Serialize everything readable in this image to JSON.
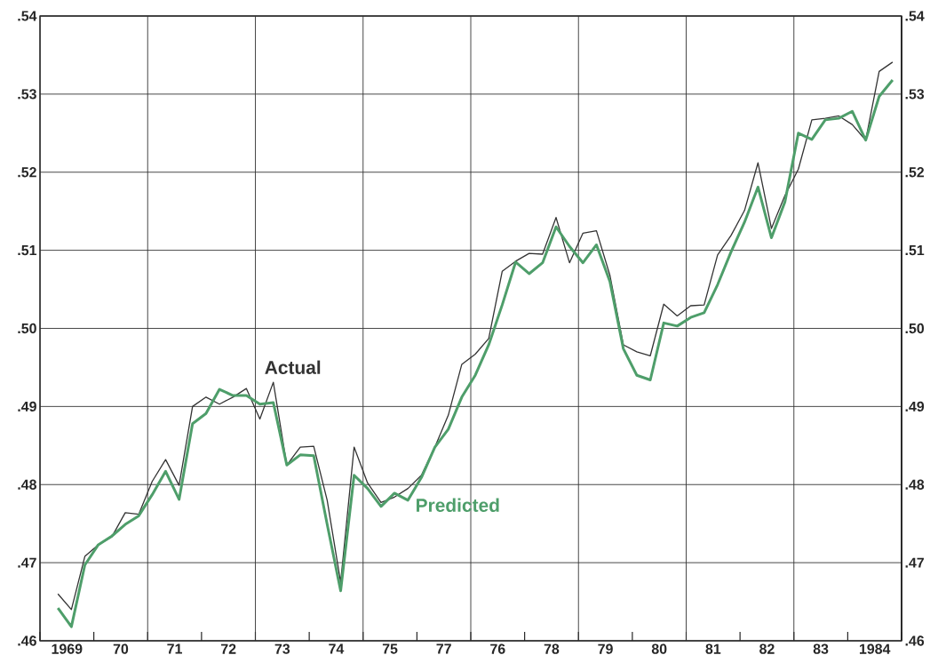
{
  "chart_data": {
    "type": "line",
    "x": [
      "1969-05",
      "1969-08",
      "1969-11",
      "1970-02",
      "1970-05",
      "1970-08",
      "1970-11",
      "1971-02",
      "1971-05",
      "1971-08",
      "1971-11",
      "1972-02",
      "1972-05",
      "1972-08",
      "1972-11",
      "1973-02",
      "1973-05",
      "1973-08",
      "1973-11",
      "1974-02",
      "1974-05",
      "1974-08",
      "1974-11",
      "1975-02",
      "1975-05",
      "1975-08",
      "1975-11",
      "1976-02",
      "1976-05",
      "1976-08",
      "1976-11",
      "1977-02",
      "1977-05",
      "1977-08",
      "1977-11",
      "1978-02",
      "1978-05",
      "1978-08",
      "1978-11",
      "1979-02",
      "1979-05",
      "1979-08",
      "1979-11",
      "1980-02",
      "1980-05",
      "1980-08",
      "1980-11",
      "1981-02",
      "1981-05",
      "1981-08",
      "1981-11",
      "1982-02",
      "1982-05",
      "1982-08",
      "1982-11",
      "1983-02",
      "1983-05",
      "1983-08",
      "1983-11",
      "1984-02",
      "1984-05",
      "1984-08",
      "1984-11"
    ],
    "series": [
      {
        "name": "Actual",
        "color": "#333333",
        "values": [
          0.466,
          0.464,
          0.4708,
          0.4723,
          0.4733,
          0.4764,
          0.4762,
          0.4804,
          0.4832,
          0.4799,
          0.49,
          0.4912,
          0.4903,
          0.4912,
          0.4923,
          0.4884,
          0.4931,
          0.4825,
          0.4848,
          0.4849,
          0.478,
          0.4675,
          0.4848,
          0.4802,
          0.4777,
          0.4784,
          0.4795,
          0.4812,
          0.4848,
          0.4889,
          0.4954,
          0.4967,
          0.4987,
          0.5073,
          0.5086,
          0.5096,
          0.5095,
          0.5142,
          0.5084,
          0.5122,
          0.5125,
          0.5068,
          0.4979,
          0.497,
          0.4965,
          0.5031,
          0.5016,
          0.5029,
          0.503,
          0.5094,
          0.5119,
          0.5151,
          0.5212,
          0.5128,
          0.517,
          0.5204,
          0.5267,
          0.5269,
          0.5272,
          0.5261,
          0.5241,
          0.5329,
          0.5341
        ]
      },
      {
        "name": "Predicted",
        "color": "#4e9e6a",
        "values": [
          0.4642,
          0.4618,
          0.4697,
          0.4723,
          0.4734,
          0.4749,
          0.476,
          0.4787,
          0.4817,
          0.4781,
          0.4878,
          0.4891,
          0.4922,
          0.4914,
          0.4914,
          0.4903,
          0.4905,
          0.4825,
          0.4838,
          0.4837,
          0.4749,
          0.4664,
          0.4812,
          0.4795,
          0.4772,
          0.4789,
          0.478,
          0.4809,
          0.4848,
          0.4871,
          0.4912,
          0.494,
          0.4979,
          0.503,
          0.5085,
          0.507,
          0.5084,
          0.513,
          0.5105,
          0.5084,
          0.5107,
          0.506,
          0.4974,
          0.494,
          0.4934,
          0.5007,
          0.5003,
          0.5014,
          0.502,
          0.5056,
          0.5098,
          0.5136,
          0.5181,
          0.5116,
          0.5162,
          0.525,
          0.5242,
          0.5267,
          0.5269,
          0.5278,
          0.5241,
          0.5297,
          0.5318
        ]
      }
    ],
    "xlim": [
      "1969-01",
      "1985-01"
    ],
    "xticks": [
      {
        "value": "1969-07",
        "label": "1969"
      },
      {
        "value": "1970-07",
        "label": "70"
      },
      {
        "value": "1971-07",
        "label": "71"
      },
      {
        "value": "1972-07",
        "label": "72"
      },
      {
        "value": "1973-07",
        "label": "73"
      },
      {
        "value": "1974-07",
        "label": "74"
      },
      {
        "value": "1975-07",
        "label": "75"
      },
      {
        "value": "1976-07",
        "label": "77"
      },
      {
        "value": "1977-07",
        "label": "76"
      },
      {
        "value": "1978-07",
        "label": "78"
      },
      {
        "value": "1979-07",
        "label": "79"
      },
      {
        "value": "1980-07",
        "label": "80"
      },
      {
        "value": "1981-07",
        "label": "81"
      },
      {
        "value": "1982-07",
        "label": "82"
      },
      {
        "value": "1983-07",
        "label": "83"
      },
      {
        "value": "1984-07",
        "label": "1984"
      },
      {
        "value": "1969-01",
        "label": null
      },
      {
        "value": "1970-01",
        "label": null
      },
      {
        "value": "1971-01",
        "label": null
      },
      {
        "value": "1972-01",
        "label": null
      },
      {
        "value": "1973-01",
        "label": null
      },
      {
        "value": "1974-01",
        "label": null
      },
      {
        "value": "1975-01",
        "label": null
      },
      {
        "value": "1976-01",
        "label": null
      },
      {
        "value": "1977-01",
        "label": null
      },
      {
        "value": "1978-01",
        "label": null
      },
      {
        "value": "1979-01",
        "label": null
      },
      {
        "value": "1980-01",
        "label": null
      },
      {
        "value": "1981-01",
        "label": null
      },
      {
        "value": "1982-01",
        "label": null
      },
      {
        "value": "1983-01",
        "label": null
      },
      {
        "value": "1984-01",
        "label": null
      },
      {
        "value": "1985-01",
        "label": null
      }
    ],
    "ylim": [
      0.46,
      0.54
    ],
    "yticks": [
      {
        "value": 0.46,
        "label": ".46"
      },
      {
        "value": 0.47,
        "label": ".47"
      },
      {
        "value": 0.48,
        "label": ".48"
      },
      {
        "value": 0.49,
        "label": ".49"
      },
      {
        "value": 0.5,
        "label": ".50"
      },
      {
        "value": 0.51,
        "label": ".51"
      },
      {
        "value": 0.52,
        "label": ".52"
      },
      {
        "value": 0.53,
        "label": ".53"
      },
      {
        "value": 0.54,
        "label": ".54"
      }
    ],
    "y2lim": [
      0.46,
      0.54
    ],
    "y2ticks": [
      {
        "value": 0.46,
        "label": ".46"
      },
      {
        "value": 0.47,
        "label": ".47"
      },
      {
        "value": 0.48,
        "label": ".48"
      },
      {
        "value": 0.49,
        "label": ".49"
      },
      {
        "value": 0.5,
        "label": ".50"
      },
      {
        "value": 0.51,
        "label": ".51"
      },
      {
        "value": 0.52,
        "label": ".52"
      },
      {
        "value": 0.53,
        "label": ".53"
      },
      {
        "value": 0.54,
        "label": ".54"
      }
    ],
    "grid": true
  }
}
